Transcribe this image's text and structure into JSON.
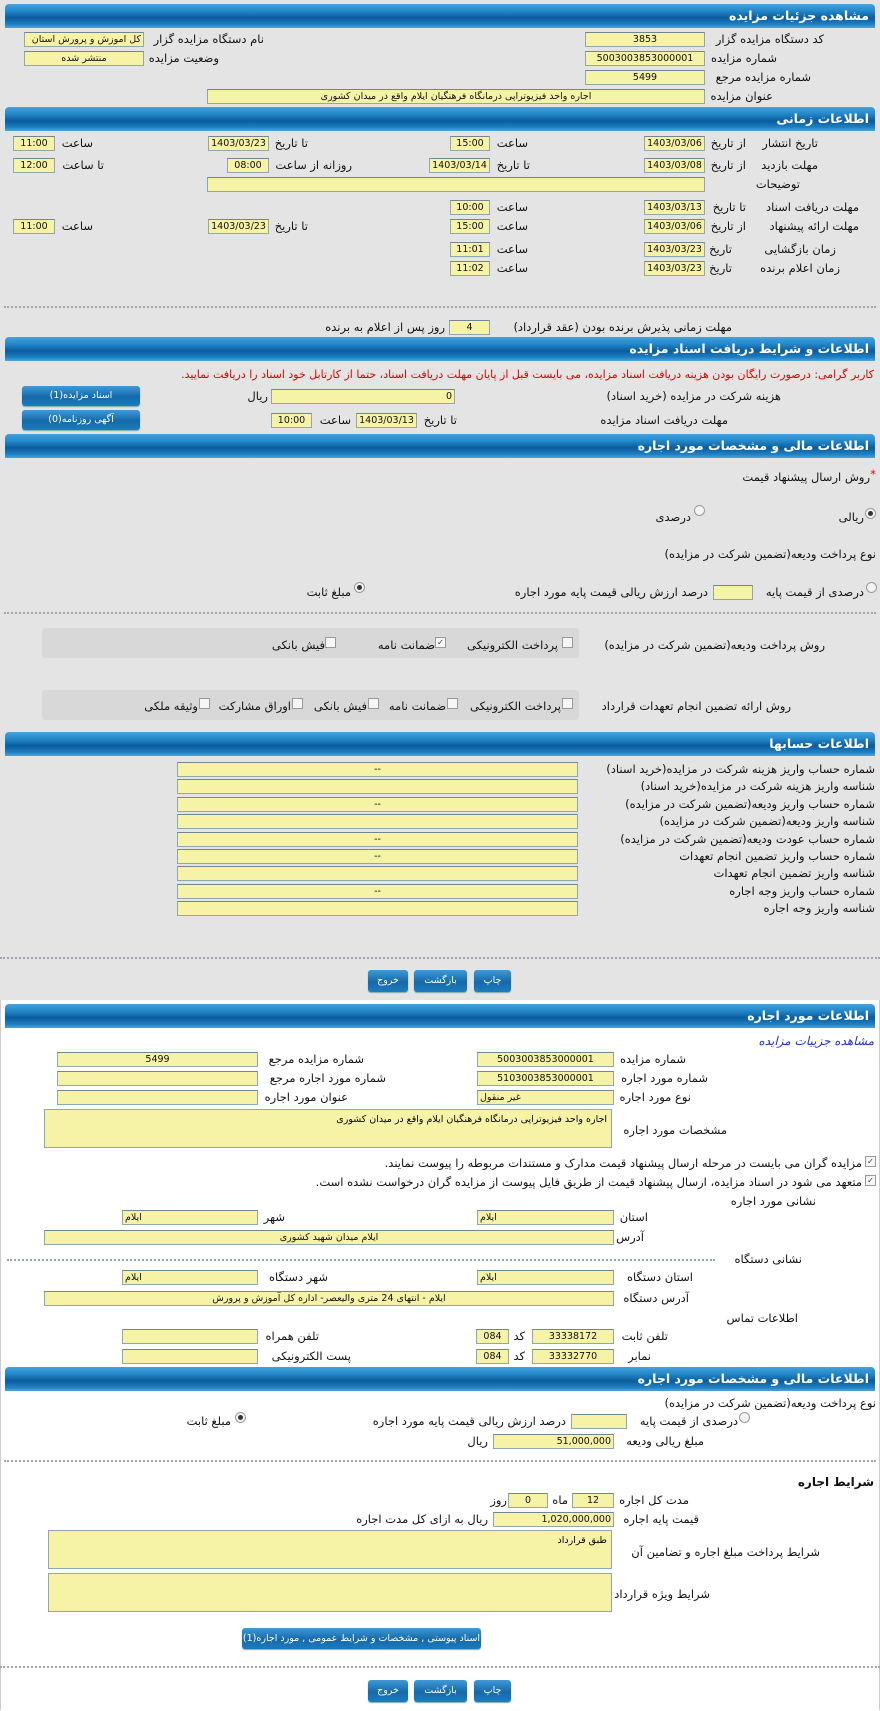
{
  "colors": {
    "header": "#0a5c9c",
    "input_bg": "#f7f3a6",
    "notice": "#e00000",
    "link": "#2233cc",
    "page_bg": "#e4e4e4"
  },
  "s1": {
    "title": "مشاهده جزئیات مزایده",
    "org_code_label": "کد دستگاه مزایده گزار",
    "org_code": "3853",
    "org_name_label": "نام دستگاه مزایده گزار",
    "org_name": "کل اموزش و پرورش استان",
    "number_label": "شماره مزایده",
    "number": "5003003853000001",
    "status_label": "وضعیت مزایده",
    "status": "منتشر شده",
    "ref_label": "شماره مزایده مرجع",
    "ref": "5499",
    "title_label": "عنوان مزایده",
    "auction_title": "اجاره واحد فیزیوتراپی درمانگاه فرهنگیان ایلام واقع در میدان کشوری"
  },
  "timing": {
    "title": "اطلاعات زمانی",
    "from_date": "از تاریخ",
    "to_date": "تا تاریخ",
    "date": "تاریخ",
    "time": "ساعت",
    "to_time": "تا ساعت",
    "daily_from": "روزانه از ساعت",
    "publish": {
      "label": "تاریخ انتشار",
      "from": "1403/03/06",
      "from_time": "15:00",
      "to": "1403/03/23",
      "to_time": "11:00"
    },
    "visit": {
      "label": "مهلت بازدید",
      "from": "1403/03/08",
      "to": "1403/03/14",
      "daily_from": "08:00",
      "to_time": "12:00"
    },
    "notes_label": "توضیحات",
    "notes": "",
    "docs": {
      "label": "مهلت دریافت اسناد",
      "to": "1403/03/13",
      "to_time": "10:00"
    },
    "offer": {
      "label": "مهلت ارائه پیشنهاد",
      "from": "1403/03/06",
      "from_time": "15:00",
      "to": "1403/03/23",
      "to_time": "11:00"
    },
    "opening": {
      "label": "زمان بازگشایی",
      "date": "1403/03/23",
      "time": "11:01"
    },
    "winner": {
      "label": "زمان اعلام برنده",
      "date": "1403/03/23",
      "time": "11:02"
    },
    "acceptance_label": "مهلت زمانی پذیرش برنده بودن (عقد قرارداد)",
    "acceptance_days": "4",
    "acceptance_suffix": "روز پس از اعلام به برنده"
  },
  "docs": {
    "title": "اطلاعات و شرایط دریافت اسناد مزایده",
    "notice": "کاربر گرامی: درصورت رایگان بودن هزینه دریافت اسناد مزایده، می بایست قبل از پایان مهلت دریافت اسناد، حتما از کارتابل خود اسناد را دریافت نمایید.",
    "fee_label": "هزینه شرکت در مزایده (خرید اسناد)",
    "fee": "0",
    "rial": "ریال",
    "deadline_label": "مهلت دریافت اسناد مزایده",
    "to_date": "تا تاریخ",
    "date": "1403/03/13",
    "time_label": "ساعت",
    "time": "10:00",
    "docs_button": "اسناد مزایده(1)",
    "ad_button": "آگهی روزنامه(0)"
  },
  "finance": {
    "title": "اطلاعات مالی و مشخصات مورد اجاره",
    "required_mark": "*",
    "bid_method_label": "روش ارسال پیشنهاد قیمت",
    "bid_rial": "ریالی",
    "bid_percent": "درصدی",
    "bid_method_selected": "ریالی",
    "deposit_type_label": "نوع پرداخت ودیعه(تضمین شرکت در مزایده)",
    "percent_option": "درصدی از قیمت پایه",
    "percent_value": "",
    "percent_suffix": "درصد ارزش ریالی قیمت پایه مورد اجاره",
    "fixed_option": "مبلغ ثابت",
    "deposit_type_selected": "مبلغ ثابت",
    "deposit_method_label": "روش پرداخت ودیعه(تضمین شرکت در مزایده)",
    "deposit_methods": [
      {
        "label": "پرداخت الکترونیکی",
        "checked": false
      },
      {
        "label": "ضمانت نامه",
        "checked": true
      },
      {
        "label": "فیش بانکی",
        "checked": false
      }
    ],
    "guarantee_label": "روش ارائه تضمین انجام تعهدات قرارداد",
    "guarantee_methods": [
      {
        "label": "پرداخت الکترونیکی",
        "checked": false
      },
      {
        "label": "ضمانت نامه",
        "checked": false
      },
      {
        "label": "فیش بانکی",
        "checked": false
      },
      {
        "label": "اوراق مشارکت",
        "checked": false
      },
      {
        "label": "وثیقه ملکی",
        "checked": false
      }
    ]
  },
  "accounts": {
    "title": "اطلاعات حسابها",
    "rows": [
      {
        "label": "شماره حساب واریز هزینه شرکت در مزایده(خرید اسناد)",
        "value": "--"
      },
      {
        "label": "شناسه واریز هزینه شرکت در مزایده(خرید اسناد)",
        "value": ""
      },
      {
        "label": "شماره حساب واریز ودیعه(تضمین شرکت در مزایده)",
        "value": "--"
      },
      {
        "label": "شناسه واریز ودیعه(تضمین شرکت در مزایده)",
        "value": ""
      },
      {
        "label": "شماره حساب عودت ودیعه(تضمین شرکت در مزایده)",
        "value": "--"
      },
      {
        "label": "شماره حساب واریز تضمین انجام تعهدات",
        "value": "--"
      },
      {
        "label": "شناسه واریز تضمین انجام تعهدات",
        "value": ""
      },
      {
        "label": "شماره حساب واریز وجه اجاره",
        "value": "--"
      },
      {
        "label": "شناسه واریز وجه اجاره",
        "value": ""
      }
    ]
  },
  "actions": {
    "print": "چاپ",
    "back": "بازگشت",
    "exit": "خروج"
  },
  "lease": {
    "title": "اطلاعات مورد اجاره",
    "details_link": "مشاهده جزییات مزایده",
    "number_label": "شماره مزایده",
    "number": "5003003853000001",
    "ref_label": "شماره مزایده مرجع",
    "ref": "5499",
    "item_number_label": "شماره مورد اجاره",
    "item_number": "5103003853000001",
    "item_ref_label": "شماره مورد اجاره مرجع",
    "item_ref": "",
    "type_label": "نوع مورد اجاره",
    "type": "غیر منقول",
    "item_title_label": "عنوان مورد اجاره",
    "item_title": "",
    "specs_label": "مشخصات مورد اجاره",
    "specs": "اجاره واحد فیزیوتراپی درمانگاه فرهنگیان ایلام واقع در میدان کشوری",
    "attach_required": "مزایده گران می بایست در مرحله ارسال پیشنهاد قیمت مدارک و مستندات مربوطه را پیوست نمایند.",
    "attach_required_checked": true,
    "file_commitment": "متعهد می شود در اسناد مزایده، ارسال پیشنهاد قیمت از طریق فایل پیوست از مزایده گران درخواست نشده است.",
    "file_commitment_checked": true,
    "address_title": "نشانی مورد اجاره",
    "province_label": "استان",
    "province": "ایلام",
    "city_label": "شهر",
    "city": "ایلام",
    "address_label": "آدرس",
    "address": "ایلام میدان شهید کشوری",
    "org_address_title": "نشانی دستگاه",
    "org_province_label": "استان دستگاه",
    "org_province": "ایلام",
    "org_city_label": "شهر دستگاه",
    "org_city": "ایلام",
    "org_address_label": "آدرس دستگاه",
    "org_address": "ایلام - انتهای 24 متری والیعصر- اداره کل آموزش و پرورش",
    "contact_title": "اطلاعات تماس",
    "phone_label": "تلفن ثابت",
    "phone": "33338172",
    "code_label": "کد",
    "phone_code": "084",
    "mobile_label": "تلفن همراه",
    "mobile": "",
    "fax_label": "نمابر",
    "fax": "33332770",
    "fax_code": "084",
    "email_label": "پست الکترونیکی",
    "email": ""
  },
  "lease_finance": {
    "title": "اطلاعات مالی و مشخصات مورد اجاره",
    "deposit_type_label": "نوع پرداخت ودیعه(تضمین شرکت در مزایده)",
    "percent_option": "درصدی از قیمت پایه",
    "percent_value": "",
    "percent_suffix": "درصد ارزش ریالی قیمت پایه مورد اجاره",
    "fixed_option": "مبلغ ثابت",
    "selected": "مبلغ ثابت",
    "deposit_amount_label": "مبلغ ریالی ودیعه",
    "deposit_amount": "51,000,000",
    "rial": "ریال",
    "terms_title": "شرایط اجاره",
    "duration_label": "مدت کل اجاره",
    "months": "12",
    "month_unit": "ماه",
    "days": "0",
    "day_unit": "روز",
    "base_price_label": "قیمت پایه اجاره",
    "base_price": "1,020,000,000",
    "base_price_suffix": "ریال به ازای کل مدت اجاره",
    "payment_terms_label": "شرایط پرداخت مبلغ اجاره و تضامین آن",
    "payment_terms": "طبق قرارداد",
    "special_terms_label": "شرایط ویژه قرارداد",
    "special_terms": "",
    "attachments_button": "اسناد پیوستی , مشخصات و شرایط عمومی , مورد اجاره(1)"
  }
}
